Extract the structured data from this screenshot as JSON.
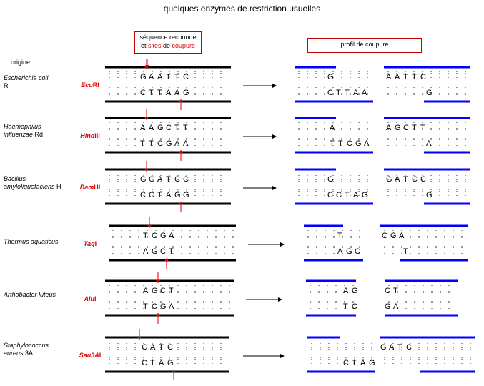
{
  "title": "quelques enzymes de restriction usuelles",
  "header": {
    "sequence_box": {
      "line1": "séquence reconnue",
      "line2_a": "et ",
      "line2_b": "sites",
      "line2_c": " de ",
      "line2_d": "coupure"
    },
    "profile_box": "profil de coupure",
    "origin_label": "origine"
  },
  "colors": {
    "strand": "#000000",
    "cut_strand": "#0000ff",
    "arrow": "#e00000",
    "enzyme": "#e00000"
  },
  "enzymes": [
    {
      "org_lines": [
        {
          "t": "Escherichia coli",
          "i": true
        },
        {
          "t": " R",
          "i": false
        }
      ],
      "enzyme_parts": [
        {
          "t": "Eco",
          "i": true
        },
        {
          "t": "RI",
          "i": false
        }
      ],
      "top": "GAATTC",
      "bottom": "CTTAAG",
      "frag_left_top": "G",
      "frag_left_bottom": "CTTAA",
      "frag_right_top": "AATTC",
      "frag_right_bottom": "G"
    },
    {
      "org_lines": [
        {
          "t": "Haemophilus",
          "i": true
        },
        {
          "t": "influenzae",
          "i": true,
          "tail": " Rd"
        }
      ],
      "enzyme_parts": [
        {
          "t": "Hind",
          "i": true
        },
        {
          "t": "III",
          "i": false
        }
      ],
      "top": "AAGCTT",
      "bottom": "TTCGAA",
      "frag_left_top": "A",
      "frag_left_bottom": "TTCGA",
      "frag_right_top": "AGCTT",
      "frag_right_bottom": "A"
    },
    {
      "org_lines": [
        {
          "t": "Bacillus",
          "i": true
        },
        {
          "t": "amyloliquefaciens",
          "i": true,
          "tail": " H"
        }
      ],
      "enzyme_parts": [
        {
          "t": "Bam",
          "i": true
        },
        {
          "t": "HI",
          "i": false
        }
      ],
      "top": "GGATCC",
      "bottom": "CCTAGG",
      "frag_left_top": "G",
      "frag_left_bottom": "CCTAG",
      "frag_right_top": "GATCC",
      "frag_right_bottom": "G"
    },
    {
      "org_lines": [
        {
          "t": "Thermus aquaticus",
          "i": true
        }
      ],
      "enzyme_parts": [
        {
          "t": "Taq",
          "i": true
        },
        {
          "t": "I",
          "i": false
        }
      ],
      "top": "TCGA",
      "bottom": "AGCT",
      "frag_left_top": "T",
      "frag_left_bottom": "AGC",
      "frag_right_top": "CGA",
      "frag_right_bottom": "T"
    },
    {
      "org_lines": [
        {
          "t": "Arthobacter luteus",
          "i": true
        }
      ],
      "enzyme_parts": [
        {
          "t": "Alu",
          "i": true
        },
        {
          "t": "I",
          "i": false
        }
      ],
      "top": "AGCT",
      "bottom": "TCGA",
      "frag_left_top": "AG",
      "frag_left_bottom": "TC",
      "frag_right_top": "CT",
      "frag_right_bottom": "GA"
    },
    {
      "org_lines": [
        {
          "t": "Staphylococcus",
          "i": true
        },
        {
          "t": "aureus",
          "i": true,
          "tail": " 3A"
        }
      ],
      "enzyme_parts": [
        {
          "t": "Sau3A",
          "i": true
        },
        {
          "t": "I",
          "i": false
        }
      ],
      "top": "GATC",
      "bottom": "CTAG",
      "frag_left_top": "",
      "frag_left_bottom": "CTAG",
      "frag_right_top": "GATC",
      "frag_right_bottom": ""
    }
  ]
}
